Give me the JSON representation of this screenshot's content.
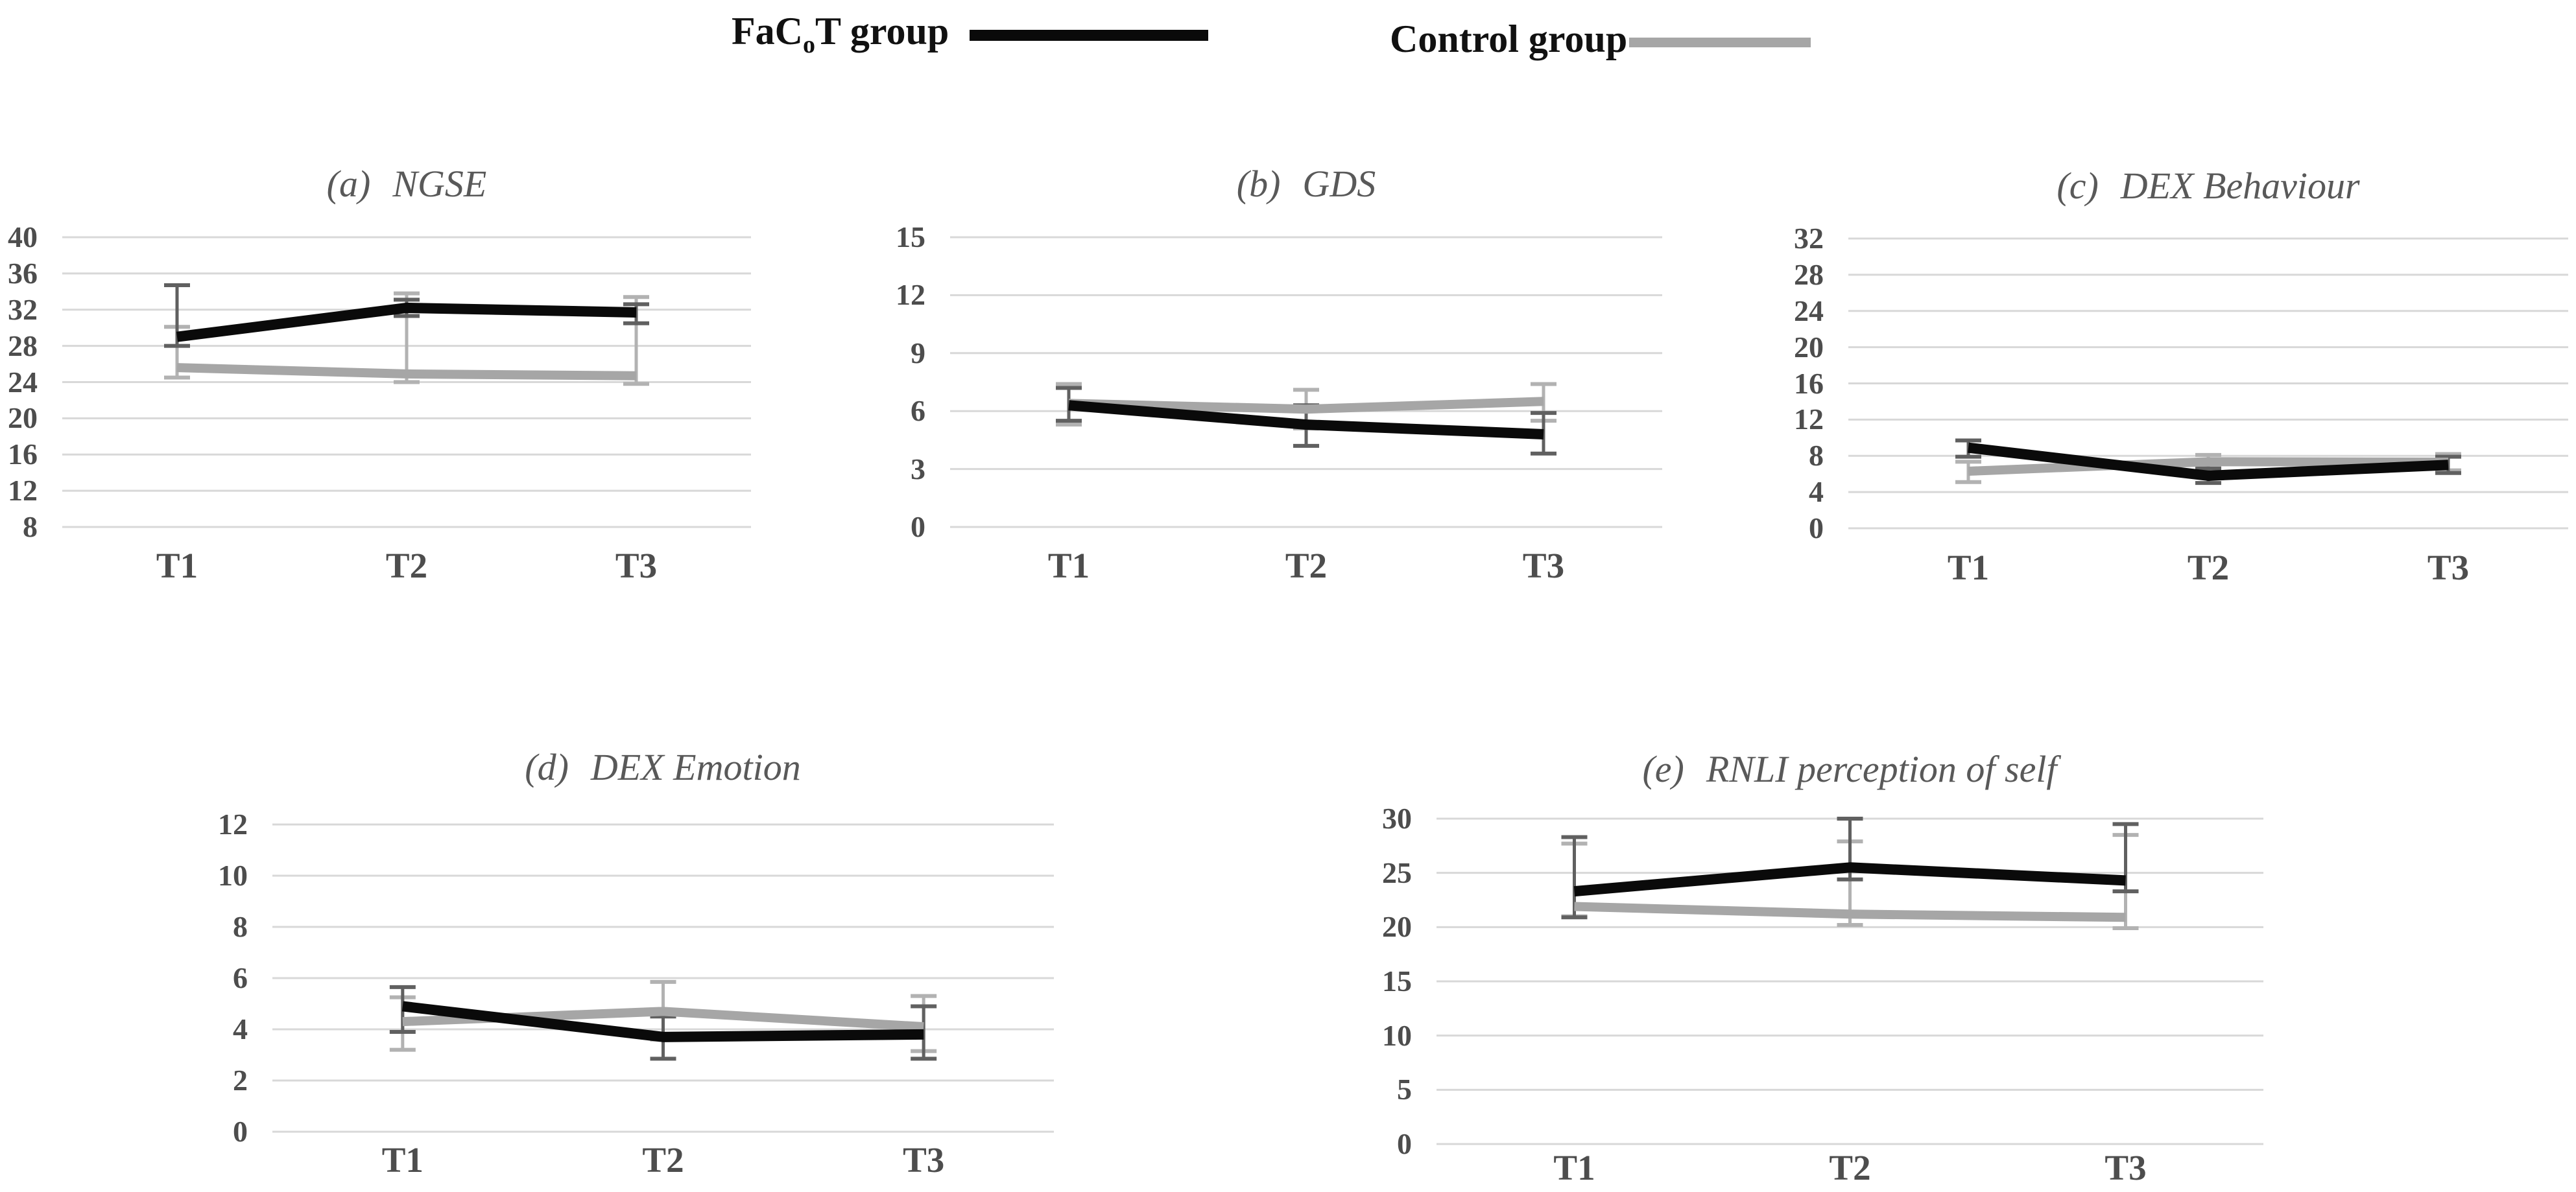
{
  "colors": {
    "facot": "#0a0a0a",
    "control": "#a6a6a6",
    "grid": "#d8d8d8",
    "err_facot": "#606060",
    "err_control": "#b2b2b2",
    "tick_text": "#4d4d4d",
    "title_text": "#595959",
    "legend_text": "#111111"
  },
  "legend": {
    "position": "top",
    "items": [
      {
        "label": "FaCoT group",
        "label_pre": "FaC",
        "label_sub": "o",
        "label_post": "T group",
        "color_key": "facot"
      },
      {
        "label": "Control group",
        "label_pre": "Control group",
        "label_sub": "",
        "label_post": "",
        "color_key": "control"
      }
    ]
  },
  "chart_data": [
    {
      "id": "a",
      "type": "line",
      "title": "(a) NGSE",
      "title_label": "(a)",
      "title_name": "NGSE",
      "xlabel": "",
      "ylabel": "",
      "categories": [
        "T1",
        "T2",
        "T3"
      ],
      "ylim": [
        8,
        40
      ],
      "yticks": [
        40,
        36,
        32,
        28,
        24,
        20,
        16,
        12,
        8
      ],
      "grid": true,
      "series": [
        {
          "name": "FaCoT group",
          "color_key": "facot",
          "values": [
            29.0,
            32.2,
            31.7
          ],
          "err_low": [
            28.0,
            31.3,
            30.5
          ],
          "err_high": [
            34.7,
            33.1,
            32.6
          ]
        },
        {
          "name": "Control group",
          "color_key": "control",
          "values": [
            25.6,
            24.9,
            24.7
          ],
          "err_low": [
            24.5,
            24.0,
            23.8
          ],
          "err_high": [
            30.1,
            33.8,
            33.4
          ]
        }
      ]
    },
    {
      "id": "b",
      "type": "line",
      "title": "(b) GDS",
      "title_label": "(b)",
      "title_name": "GDS",
      "xlabel": "",
      "ylabel": "",
      "categories": [
        "T1",
        "T2",
        "T3"
      ],
      "ylim": [
        0,
        15
      ],
      "yticks": [
        15,
        12,
        9,
        6,
        3,
        0
      ],
      "grid": true,
      "series": [
        {
          "name": "FaCoT group",
          "color_key": "facot",
          "values": [
            6.3,
            5.3,
            4.8
          ],
          "err_low": [
            5.5,
            4.2,
            3.8
          ],
          "err_high": [
            7.2,
            6.3,
            5.9
          ]
        },
        {
          "name": "Control group",
          "color_key": "control",
          "values": [
            6.4,
            6.1,
            6.5
          ],
          "err_low": [
            5.3,
            5.1,
            5.5
          ],
          "err_high": [
            7.4,
            7.1,
            7.4
          ]
        }
      ]
    },
    {
      "id": "c",
      "type": "line",
      "title": "(c) DEX Behaviour",
      "title_label": "(c)",
      "title_name": "DEX Behaviour",
      "xlabel": "",
      "ylabel": "",
      "categories": [
        "T1",
        "T2",
        "T3"
      ],
      "ylim": [
        0,
        32
      ],
      "yticks": [
        32,
        28,
        24,
        20,
        16,
        12,
        8,
        4,
        0
      ],
      "grid": true,
      "series": [
        {
          "name": "FaCoT group",
          "color_key": "facot",
          "values": [
            8.9,
            5.8,
            7.0
          ],
          "err_low": [
            7.9,
            5.0,
            6.1
          ],
          "err_high": [
            9.7,
            6.6,
            7.9
          ]
        },
        {
          "name": "Control group",
          "color_key": "control",
          "values": [
            6.3,
            7.35,
            7.3
          ],
          "err_low": [
            5.1,
            6.6,
            6.4
          ],
          "err_high": [
            7.35,
            8.1,
            8.2
          ]
        }
      ]
    },
    {
      "id": "d",
      "type": "line",
      "title": "(d) DEX Emotion",
      "title_label": "(d)",
      "title_name": "DEX Emotion",
      "xlabel": "",
      "ylabel": "",
      "categories": [
        "T1",
        "T2",
        "T3"
      ],
      "ylim": [
        0,
        12
      ],
      "yticks": [
        12,
        10,
        8,
        6,
        4,
        2,
        0
      ],
      "grid": true,
      "series": [
        {
          "name": "FaCoT group",
          "color_key": "facot",
          "values": [
            4.9,
            3.7,
            3.8
          ],
          "err_low": [
            3.9,
            2.85,
            2.85
          ],
          "err_high": [
            5.65,
            4.5,
            4.9
          ]
        },
        {
          "name": "Control group",
          "color_key": "control",
          "values": [
            4.3,
            4.7,
            4.1
          ],
          "err_low": [
            3.2,
            3.6,
            3.15
          ],
          "err_high": [
            5.25,
            5.85,
            5.3
          ]
        }
      ]
    },
    {
      "id": "e",
      "type": "line",
      "title": "(e) RNLI perception of self",
      "title_label": "(e)",
      "title_name": "RNLI perception of self",
      "xlabel": "",
      "ylabel": "",
      "categories": [
        "T1",
        "T2",
        "T3"
      ],
      "ylim": [
        0,
        30
      ],
      "yticks": [
        30,
        25,
        20,
        15,
        10,
        5,
        0
      ],
      "grid": true,
      "series": [
        {
          "name": "FaCoT group",
          "color_key": "facot",
          "values": [
            23.3,
            25.5,
            24.3
          ],
          "err_low": [
            20.9,
            24.4,
            23.3
          ],
          "err_high": [
            28.3,
            30.0,
            29.5
          ]
        },
        {
          "name": "Control group",
          "color_key": "control",
          "values": [
            21.9,
            21.2,
            20.9
          ],
          "err_low": [
            21.0,
            20.2,
            19.9
          ],
          "err_high": [
            27.7,
            27.9,
            28.5
          ]
        }
      ]
    }
  ]
}
